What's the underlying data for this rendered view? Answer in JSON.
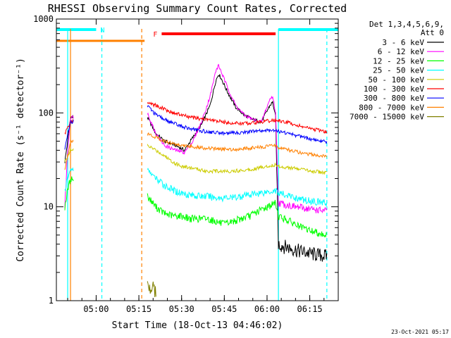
{
  "chart_data": {
    "type": "line",
    "title": "RHESSI Observing Summary Count Rates, Corrected",
    "xlabel": "Start Time (18-Oct-13 04:46:02)",
    "ylabel": "Corrected Count Rate (s⁻¹ detector⁻¹)",
    "y_scale": "log",
    "ylim": [
      1,
      1000
    ],
    "xlim": [
      "04:46:02",
      "06:25:00"
    ],
    "x_ticks": [
      "05:00",
      "05:15",
      "05:30",
      "05:45",
      "06:00",
      "06:15"
    ],
    "y_ticks": [
      {
        "value": 1,
        "label": "1"
      },
      {
        "value": 10,
        "label": "10"
      },
      {
        "value": 100,
        "label": "100"
      },
      {
        "value": 1000,
        "label": "1000"
      }
    ],
    "legend_header": [
      "Det 1,3,4,5,6,9,",
      "Att 0"
    ],
    "legend_position": "right",
    "data_gaps": [
      [
        "04:52:00",
        "05:18:00"
      ]
    ],
    "series": [
      {
        "name": "3 - 6 keV",
        "color": "#000000",
        "points": [
          [
            "04:49",
            30
          ],
          [
            "04:50",
            50
          ],
          [
            "04:51",
            90
          ],
          [
            "05:18",
            90
          ],
          [
            "05:21",
            60
          ],
          [
            "05:24",
            50
          ],
          [
            "05:28",
            45
          ],
          [
            "05:31",
            40
          ],
          [
            "05:34",
            55
          ],
          [
            "05:37",
            75
          ],
          [
            "05:40",
            120
          ],
          [
            "05:42",
            220
          ],
          [
            "05:43",
            260
          ],
          [
            "05:44",
            230
          ],
          [
            "05:46",
            170
          ],
          [
            "05:49",
            115
          ],
          [
            "05:52",
            95
          ],
          [
            "05:55",
            85
          ],
          [
            "05:58",
            80
          ],
          [
            "06:01",
            120
          ],
          [
            "06:02",
            130
          ],
          [
            "06:03",
            90
          ],
          [
            "06:04",
            4
          ],
          [
            "06:10",
            3.5
          ],
          [
            "06:15",
            3.2
          ],
          [
            "06:21",
            3
          ]
        ]
      },
      {
        "name": "6 - 12 keV",
        "color": "#ff00ff",
        "points": [
          [
            "04:49",
            10
          ],
          [
            "04:50",
            40
          ],
          [
            "04:51",
            90
          ],
          [
            "05:18",
            100
          ],
          [
            "05:21",
            60
          ],
          [
            "05:24",
            45
          ],
          [
            "05:28",
            40
          ],
          [
            "05:31",
            38
          ],
          [
            "05:34",
            50
          ],
          [
            "05:37",
            80
          ],
          [
            "05:40",
            150
          ],
          [
            "05:42",
            280
          ],
          [
            "05:43",
            320
          ],
          [
            "05:44",
            270
          ],
          [
            "05:46",
            190
          ],
          [
            "05:49",
            120
          ],
          [
            "05:52",
            95
          ],
          [
            "05:55",
            85
          ],
          [
            "05:58",
            80
          ],
          [
            "06:01",
            140
          ],
          [
            "06:02",
            150
          ],
          [
            "06:03",
            100
          ],
          [
            "06:04",
            11
          ],
          [
            "06:10",
            10
          ],
          [
            "06:15",
            9.5
          ],
          [
            "06:21",
            9
          ]
        ]
      },
      {
        "name": "12 - 25 keV",
        "color": "#00ff00",
        "points": [
          [
            "04:49",
            10
          ],
          [
            "04:50",
            15
          ],
          [
            "04:51",
            20
          ],
          [
            "05:18",
            13
          ],
          [
            "05:21",
            10
          ],
          [
            "05:24",
            8.5
          ],
          [
            "05:27",
            8
          ],
          [
            "05:30",
            8
          ],
          [
            "05:33",
            7.5
          ],
          [
            "05:36",
            7.5
          ],
          [
            "05:39",
            7.5
          ],
          [
            "05:42",
            7
          ],
          [
            "05:45",
            6.5
          ],
          [
            "05:48",
            7
          ],
          [
            "05:51",
            7.5
          ],
          [
            "05:54",
            8
          ],
          [
            "05:57",
            9
          ],
          [
            "06:00",
            10
          ],
          [
            "06:03",
            11
          ],
          [
            "06:04",
            8
          ],
          [
            "06:08",
            7
          ],
          [
            "06:12",
            6
          ],
          [
            "06:16",
            5.5
          ],
          [
            "06:21",
            5
          ]
        ]
      },
      {
        "name": "25 - 50 keV",
        "color": "#00ffff",
        "points": [
          [
            "04:49",
            15
          ],
          [
            "04:50",
            20
          ],
          [
            "04:51",
            25
          ],
          [
            "05:18",
            25
          ],
          [
            "05:21",
            20
          ],
          [
            "05:24",
            17
          ],
          [
            "05:27",
            15
          ],
          [
            "05:30",
            14
          ],
          [
            "05:33",
            13.5
          ],
          [
            "05:36",
            13
          ],
          [
            "05:39",
            13
          ],
          [
            "05:42",
            12.5
          ],
          [
            "05:45",
            12.5
          ],
          [
            "05:48",
            12.5
          ],
          [
            "05:51",
            13
          ],
          [
            "05:54",
            13.5
          ],
          [
            "05:57",
            14
          ],
          [
            "06:00",
            14.5
          ],
          [
            "06:03",
            15
          ],
          [
            "06:04",
            14
          ],
          [
            "06:08",
            13
          ],
          [
            "06:12",
            12
          ],
          [
            "06:16",
            11.5
          ],
          [
            "06:21",
            11
          ]
        ]
      },
      {
        "name": "50 - 100 keV",
        "color": "#cccc00",
        "points": [
          [
            "04:49",
            30
          ],
          [
            "04:50",
            35
          ],
          [
            "04:51",
            40
          ],
          [
            "05:18",
            45
          ],
          [
            "05:21",
            40
          ],
          [
            "05:24",
            35
          ],
          [
            "05:27",
            30
          ],
          [
            "05:30",
            27
          ],
          [
            "05:33",
            26
          ],
          [
            "05:36",
            25
          ],
          [
            "05:39",
            24
          ],
          [
            "05:42",
            24
          ],
          [
            "05:45",
            24
          ],
          [
            "05:48",
            24
          ],
          [
            "05:51",
            24.5
          ],
          [
            "05:54",
            25
          ],
          [
            "05:57",
            26
          ],
          [
            "06:00",
            27
          ],
          [
            "06:03",
            28
          ],
          [
            "06:04",
            27
          ],
          [
            "06:08",
            26
          ],
          [
            "06:12",
            25
          ],
          [
            "06:16",
            24
          ],
          [
            "06:21",
            23
          ]
        ]
      },
      {
        "name": "100 - 300 keV",
        "color": "#ff0000",
        "points": [
          [
            "04:49",
            60
          ],
          [
            "04:50",
            70
          ],
          [
            "04:51",
            80
          ],
          [
            "05:18",
            130
          ],
          [
            "05:21",
            120
          ],
          [
            "05:24",
            110
          ],
          [
            "05:27",
            100
          ],
          [
            "05:30",
            95
          ],
          [
            "05:33",
            90
          ],
          [
            "05:36",
            87
          ],
          [
            "05:39",
            85
          ],
          [
            "05:42",
            82
          ],
          [
            "05:45",
            80
          ],
          [
            "05:48",
            78
          ],
          [
            "05:51",
            77
          ],
          [
            "05:54",
            78
          ],
          [
            "05:57",
            80
          ],
          [
            "06:00",
            82
          ],
          [
            "06:03",
            84
          ],
          [
            "06:04",
            82
          ],
          [
            "06:08",
            78
          ],
          [
            "06:12",
            72
          ],
          [
            "06:16",
            67
          ],
          [
            "06:21",
            63
          ]
        ]
      },
      {
        "name": "300 - 800 keV",
        "color": "#0000ff",
        "points": [
          [
            "04:49",
            40
          ],
          [
            "04:50",
            60
          ],
          [
            "04:51",
            80
          ],
          [
            "05:18",
            120
          ],
          [
            "05:21",
            95
          ],
          [
            "05:24",
            85
          ],
          [
            "05:27",
            78
          ],
          [
            "05:30",
            72
          ],
          [
            "05:33",
            68
          ],
          [
            "05:36",
            65
          ],
          [
            "05:39",
            63
          ],
          [
            "05:42",
            62
          ],
          [
            "05:45",
            61
          ],
          [
            "05:48",
            61
          ],
          [
            "05:51",
            62
          ],
          [
            "05:54",
            63
          ],
          [
            "05:57",
            64
          ],
          [
            "06:00",
            65
          ],
          [
            "06:03",
            66
          ],
          [
            "06:04",
            64
          ],
          [
            "06:08",
            60
          ],
          [
            "06:12",
            56
          ],
          [
            "06:16",
            52
          ],
          [
            "06:21",
            49
          ]
        ]
      },
      {
        "name": "800 - 7000 keV",
        "color": "#ff8000",
        "points": [
          [
            "04:49",
            25
          ],
          [
            "04:50",
            35
          ],
          [
            "04:51",
            50
          ],
          [
            "05:18",
            60
          ],
          [
            "05:21",
            55
          ],
          [
            "05:24",
            50
          ],
          [
            "05:27",
            47
          ],
          [
            "05:30",
            45
          ],
          [
            "05:33",
            44
          ],
          [
            "05:36",
            43
          ],
          [
            "05:39",
            42
          ],
          [
            "05:42",
            41.5
          ],
          [
            "05:45",
            41
          ],
          [
            "05:48",
            41
          ],
          [
            "05:51",
            41.5
          ],
          [
            "05:54",
            42
          ],
          [
            "05:57",
            43
          ],
          [
            "06:00",
            44
          ],
          [
            "06:03",
            45
          ],
          [
            "06:04",
            43
          ],
          [
            "06:08",
            40
          ],
          [
            "06:12",
            37.5
          ],
          [
            "06:16",
            36
          ],
          [
            "06:21",
            34
          ]
        ]
      },
      {
        "name": "7000 - 15000 keV",
        "color": "#808000",
        "points": [
          [
            "05:18",
            1.6
          ],
          [
            "05:19",
            1.3
          ],
          [
            "05:20",
            1.5
          ],
          [
            "05:21",
            1.2
          ]
        ]
      }
    ],
    "flags": [
      {
        "label": "N",
        "color": "#00ffff",
        "bars": [
          [
            "04:46:02",
            "05:00"
          ],
          [
            "06:04",
            "06:25"
          ]
        ]
      },
      {
        "label": "F",
        "color": "#ff0000",
        "bars": [
          [
            "05:23",
            "06:03"
          ]
        ]
      },
      {
        "label": "",
        "color": "#ff8000",
        "bars": [
          [
            "04:46:02",
            "05:17"
          ]
        ]
      }
    ],
    "markers": [
      {
        "time": "04:50",
        "color": "#00ffff",
        "style": "solid"
      },
      {
        "time": "04:51",
        "color": "#ff8000",
        "style": "solid"
      },
      {
        "time": "05:02",
        "color": "#00ffff",
        "style": "dashed"
      },
      {
        "time": "05:16",
        "color": "#ff8000",
        "style": "dashed"
      },
      {
        "time": "06:04",
        "color": "#00ffff",
        "style": "solid"
      },
      {
        "time": "06:21",
        "color": "#00ffff",
        "style": "dashed"
      }
    ]
  },
  "footer": {
    "timestamp": "23-Oct-2021 05:17"
  }
}
